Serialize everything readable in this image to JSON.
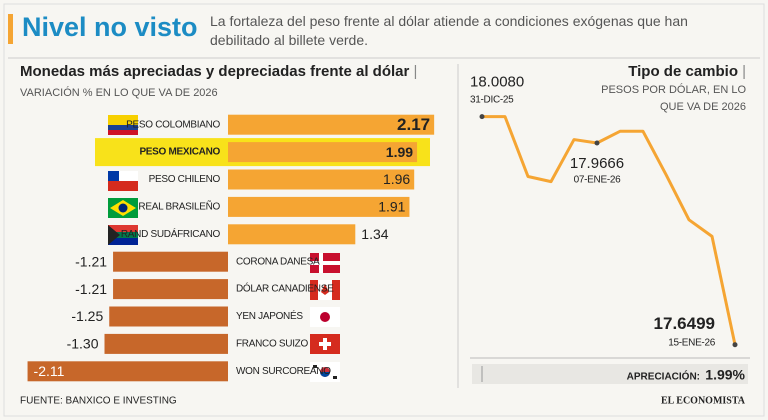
{
  "header": {
    "title": "Nivel no visto",
    "subtitle": "La fortaleza del peso frente al dólar atiende a condiciones exógenas que han debilitado al billete verde."
  },
  "chart_data": [
    {
      "type": "hbar",
      "title": "Monedas más apreciadas y depreciadas frente al dólar",
      "subtitle": "VARIACIÓN % EN LO QUE VA DE 2026",
      "categories": [
        "PESO COLOMBIANO",
        "PESO MEXICANO",
        "PESO CHILENO",
        "REAL BRASILEÑO",
        "RAND SUDÁFRICANO",
        "CORONA DANESA",
        "DÓLAR CANADIENSE",
        "YEN JAPONÉS",
        "FRANCO SUIZO",
        "WON SURCOREANO"
      ],
      "values": [
        2.17,
        1.99,
        1.96,
        1.91,
        1.34,
        -1.21,
        -1.21,
        -1.25,
        -1.3,
        -2.11
      ],
      "value_labels": [
        "2.17",
        "1.99",
        "1.96",
        "1.91",
        "1.34",
        "-1.21",
        "-1.21",
        "-1.25",
        "-1.30",
        "-2.11"
      ],
      "colors": {
        "positive": "#f5a533",
        "negative": "#c7672a"
      },
      "highlight": "PESO MEXICANO",
      "highlight_color": "#f8e21a",
      "xlim": [
        -2.2,
        2.2
      ]
    },
    {
      "type": "line",
      "title": "Tipo de cambio",
      "subtitle": "PESOS POR DÓLAR, EN LO QUE VA DE 2026",
      "categories": [
        "31-DIC-25",
        null,
        null,
        null,
        null,
        "07-ENE-26",
        null,
        null,
        null,
        null,
        null,
        "15-ENE-26"
      ],
      "values": [
        18.008,
        18.008,
        17.914,
        17.906,
        17.972,
        17.9666,
        17.985,
        17.985,
        17.917,
        17.846,
        17.82,
        17.6499
      ],
      "value_labels": [
        "18.0080",
        null,
        null,
        null,
        null,
        "17.9666",
        null,
        null,
        null,
        null,
        null,
        "17.6499"
      ],
      "color": "#f5a533",
      "ylim": [
        17.64,
        18.02
      ],
      "annotation": {
        "label": "APRECIACIÓN:",
        "value": "1.99%"
      }
    }
  ],
  "footer": {
    "source": "FUENTE: BANXICO E INVESTING",
    "brand": "EL ECONOMISTA"
  }
}
